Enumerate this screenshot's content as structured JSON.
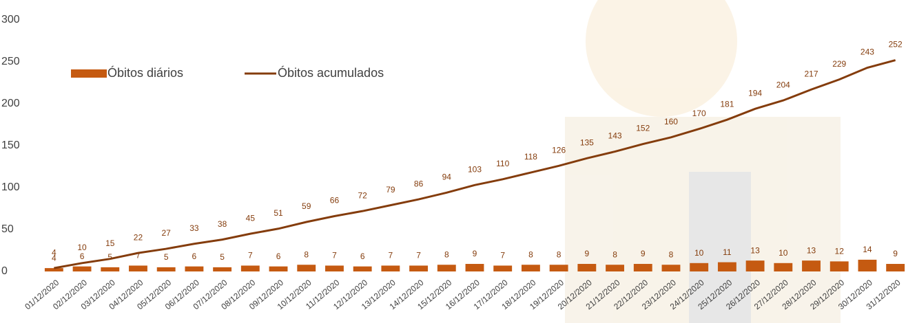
{
  "chart_data": {
    "type": "bar",
    "categories": [
      "01/12/2020",
      "02/12/2020",
      "03/12/2020",
      "04/12/2020",
      "05/12/2020",
      "06/12/2020",
      "07/12/2020",
      "08/12/2020",
      "09/12/2020",
      "10/12/2020",
      "11/12/2020",
      "12/12/2020",
      "13/12/2020",
      "14/12/2020",
      "15/12/2020",
      "16/12/2020",
      "17/12/2020",
      "18/12/2020",
      "19/12/2020",
      "20/12/2020",
      "21/12/2020",
      "22/12/2020",
      "23/12/2020",
      "24/12/2020",
      "25/12/2020",
      "26/12/2020",
      "27/12/2020",
      "28/12/2020",
      "29/12/2020",
      "30/12/2020",
      "31/12/2020"
    ],
    "series": [
      {
        "name": "Óbitos diários",
        "type": "bar",
        "color": "#c55a11",
        "values": [
          4,
          6,
          5,
          7,
          5,
          6,
          5,
          7,
          6,
          8,
          7,
          6,
          7,
          7,
          8,
          9,
          7,
          8,
          8,
          9,
          8,
          9,
          8,
          10,
          11,
          13,
          10,
          13,
          12,
          14,
          9
        ]
      },
      {
        "name": "Óbitos acumulados",
        "type": "line",
        "color": "#843c0c",
        "values": [
          4,
          10,
          15,
          22,
          27,
          33,
          38,
          45,
          51,
          59,
          66,
          72,
          79,
          86,
          94,
          103,
          110,
          118,
          126,
          135,
          143,
          152,
          160,
          170,
          181,
          194,
          204,
          217,
          229,
          243,
          252
        ]
      }
    ],
    "ylim": [
      0,
      300
    ],
    "yticks": [
      0,
      50,
      100,
      150,
      200,
      250,
      300
    ],
    "grid": false,
    "legend": "top-left"
  }
}
